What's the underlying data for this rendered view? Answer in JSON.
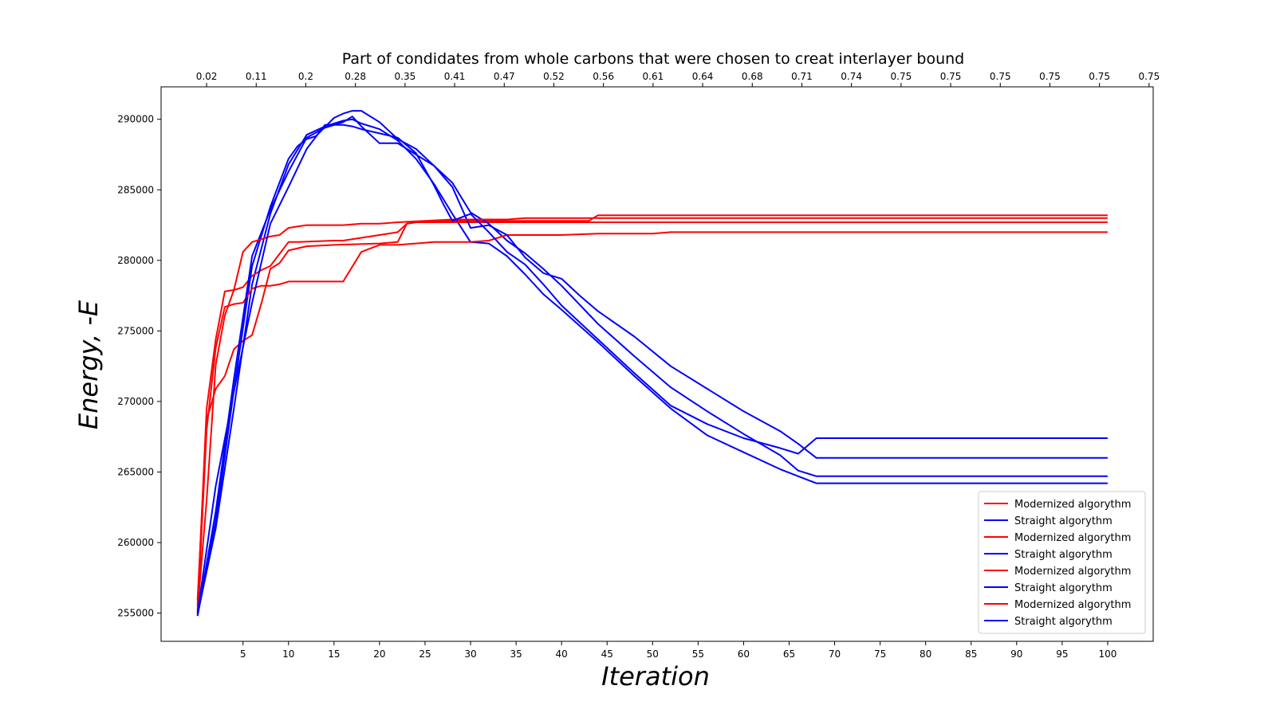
{
  "colors": {
    "modernized": "#ff0000",
    "straight": "#0000ff",
    "frame": "#000000",
    "legend_border": "#cccccc"
  },
  "chart_data": {
    "type": "line",
    "title": "Part of condidates from whole carbons that were chosen to creat interlayer bound",
    "xlabel": "Iteration",
    "ylabel": "Energy, -E",
    "xlim": [
      -4,
      105
    ],
    "ylim": [
      253000,
      292300
    ],
    "grid": false,
    "legend_position": "lower-right",
    "x_ticks": [
      5,
      10,
      15,
      20,
      25,
      30,
      35,
      40,
      45,
      50,
      55,
      60,
      65,
      70,
      75,
      80,
      85,
      90,
      95,
      100
    ],
    "y_ticks": [
      255000,
      260000,
      265000,
      270000,
      275000,
      280000,
      285000,
      290000
    ],
    "top_ticks": {
      "positions": [
        1,
        6.45,
        11.9,
        17.35,
        22.8,
        28.25,
        33.7,
        39.15,
        44.6,
        50.05,
        55.5,
        60.95,
        66.4,
        71.85,
        77.3,
        82.75,
        88.2,
        93.65,
        99.1,
        104.55
      ],
      "labels": [
        "0.02",
        "0.11",
        "0.2",
        "0.28",
        "0.35",
        "0.41",
        "0.47",
        "0.52",
        "0.56",
        "0.61",
        "0.64",
        "0.68",
        "0.71",
        "0.74",
        "0.75",
        "0.75",
        "0.75",
        "0.75",
        "0.75",
        "0.75"
      ]
    },
    "series": [
      {
        "name": "Modernized algorythm",
        "color": "#ff0000",
        "x": [
          0,
          1,
          2,
          3,
          4,
          5,
          6,
          7,
          8,
          9,
          10,
          12,
          15,
          20,
          22,
          23,
          24,
          25,
          28,
          34,
          35,
          43,
          44,
          100
        ],
        "y": [
          255900,
          268700,
          270900,
          271800,
          273700,
          274300,
          274700,
          276900,
          279400,
          279800,
          280700,
          281000,
          281100,
          281200,
          281300,
          282600,
          282700,
          282700,
          282800,
          282800,
          282800,
          282800,
          283200,
          283200
        ]
      },
      {
        "name": "Straight algorythm",
        "color": "#0000ff",
        "x": [
          0,
          2,
          4,
          6,
          8,
          10,
          12,
          14,
          16,
          17,
          18,
          20,
          22,
          24,
          26,
          28,
          30,
          32,
          34,
          36,
          38,
          40,
          44,
          48,
          52,
          56,
          60,
          64,
          66,
          68,
          100
        ],
        "y": [
          254900,
          261000,
          269500,
          278300,
          283300,
          286800,
          288900,
          289500,
          289900,
          290000,
          289700,
          289300,
          288500,
          287200,
          285400,
          283300,
          281300,
          281200,
          280300,
          279000,
          277600,
          276500,
          274200,
          271800,
          269500,
          267600,
          266400,
          265200,
          264700,
          264200,
          264200
        ]
      },
      {
        "name": "Modernized algorythm",
        "color": "#ff0000",
        "x": [
          0,
          1,
          2,
          3,
          4,
          5,
          6,
          7,
          8,
          10,
          11,
          15,
          16,
          17,
          18,
          19,
          20,
          21,
          22,
          23,
          24,
          25,
          26,
          30,
          34,
          35,
          50,
          51,
          100
        ],
        "y": [
          255500,
          269500,
          274400,
          277800,
          277900,
          278100,
          278900,
          279300,
          279600,
          281300,
          281300,
          281400,
          281400,
          281500,
          281600,
          281700,
          281800,
          281900,
          282000,
          282600,
          282700,
          282700,
          282700,
          282700,
          282700,
          282700,
          282700,
          282700,
          282700
        ]
      },
      {
        "name": "Straight algorythm",
        "color": "#0000ff",
        "x": [
          0,
          2,
          4,
          6,
          8,
          10,
          11,
          12,
          13,
          15,
          16,
          17,
          18,
          20,
          22,
          24,
          26,
          28,
          30,
          32,
          34,
          36,
          38,
          40,
          44,
          48,
          52,
          56,
          60,
          64,
          66,
          68,
          100
        ],
        "y": [
          254800,
          261500,
          270800,
          279600,
          283800,
          287200,
          288100,
          288600,
          288800,
          290100,
          290400,
          290600,
          290600,
          289800,
          288600,
          287900,
          286700,
          285500,
          283400,
          282600,
          281400,
          280500,
          279400,
          278200,
          275500,
          273200,
          271000,
          269300,
          267700,
          266200,
          265100,
          264700,
          264700
        ]
      },
      {
        "name": "Modernized algorythm",
        "color": "#ff0000",
        "x": [
          0,
          1,
          2,
          3,
          4,
          5,
          6,
          7,
          8,
          9,
          10,
          12,
          16,
          18,
          20,
          22,
          24,
          26,
          28,
          30,
          32,
          34,
          36,
          40,
          44,
          50,
          52,
          60,
          70,
          100
        ],
        "y": [
          255000,
          268000,
          273800,
          276700,
          276900,
          277000,
          278000,
          278200,
          278200,
          278300,
          278500,
          278500,
          278500,
          280600,
          281100,
          281100,
          281200,
          281300,
          281300,
          281300,
          281400,
          281800,
          281800,
          281800,
          281900,
          281900,
          282000,
          282000,
          282000,
          282000
        ]
      },
      {
        "name": "Straight algorythm",
        "color": "#0000ff",
        "x": [
          0,
          2,
          4,
          6,
          8,
          10,
          12,
          14,
          16,
          17,
          18,
          20,
          22,
          24,
          26,
          28,
          30,
          32,
          34,
          36,
          38,
          40,
          42,
          44,
          48,
          52,
          56,
          60,
          64,
          66,
          68,
          100
        ],
        "y": [
          254800,
          262200,
          271600,
          280300,
          283600,
          286300,
          288700,
          289400,
          289800,
          290200,
          289500,
          288300,
          288300,
          287500,
          286700,
          285200,
          282300,
          282500,
          281800,
          280200,
          279100,
          278700,
          277500,
          276400,
          274600,
          272500,
          270900,
          269300,
          267900,
          267000,
          266000,
          266000
        ]
      },
      {
        "name": "Modernized algorythm",
        "color": "#ff0000",
        "x": [
          0,
          1,
          2,
          3,
          4,
          5,
          6,
          7,
          8,
          9,
          10,
          11,
          12,
          14,
          16,
          18,
          20,
          22,
          25,
          28,
          34,
          36,
          40,
          44,
          50,
          60,
          70,
          100
        ],
        "y": [
          255200,
          263000,
          272600,
          276100,
          277900,
          280600,
          281300,
          281500,
          281700,
          281800,
          282300,
          282400,
          282500,
          282500,
          282500,
          282600,
          282600,
          282700,
          282800,
          282900,
          282900,
          283000,
          283000,
          283000,
          283000,
          283000,
          283000,
          283000
        ]
      },
      {
        "name": "Straight algorythm",
        "color": "#0000ff",
        "x": [
          0,
          2,
          4,
          6,
          8,
          10,
          12,
          14,
          16,
          17,
          18,
          20,
          22,
          24,
          26,
          27,
          28,
          30,
          32,
          34,
          36,
          38,
          40,
          44,
          48,
          52,
          56,
          60,
          64,
          66,
          68,
          100
        ],
        "y": [
          255000,
          264000,
          270700,
          277000,
          282600,
          285200,
          287900,
          289600,
          289600,
          289500,
          289300,
          289000,
          288700,
          287600,
          285300,
          284000,
          282800,
          283300,
          282000,
          280600,
          279700,
          278300,
          276800,
          274400,
          272000,
          269700,
          268400,
          267400,
          266700,
          266300,
          267400,
          267400
        ]
      }
    ]
  }
}
